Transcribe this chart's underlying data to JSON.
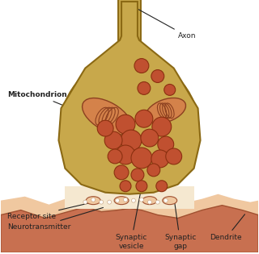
{
  "bg_color": "#ffffff",
  "axon_color": "#c8a84b",
  "axon_border_color": "#8b6914",
  "dendrite_color": "#c87050",
  "dendrite_bg_color": "#f0c8a0",
  "dendrite_border_color": "#a05030",
  "vesicle_fill": "#c05030",
  "vesicle_edge": "#8b3010",
  "mito_fill": "#c87850",
  "mito_edge": "#8b5020",
  "gap_color": "#f5e8d0",
  "receptor_color": "#e8c090",
  "label_color": "#222222",
  "label_fontsize": 6.5,
  "title_color": "#222222",
  "axon_label": "Axon",
  "mito_label": "Mitochondrion",
  "receptor_label": "Receptor site",
  "neuro_label": "Neurotransmitter",
  "vesicle_label": "Synaptic\nvesicle",
  "gap_label": "Synaptic\ngap",
  "dendrite_label": "Dendrite"
}
